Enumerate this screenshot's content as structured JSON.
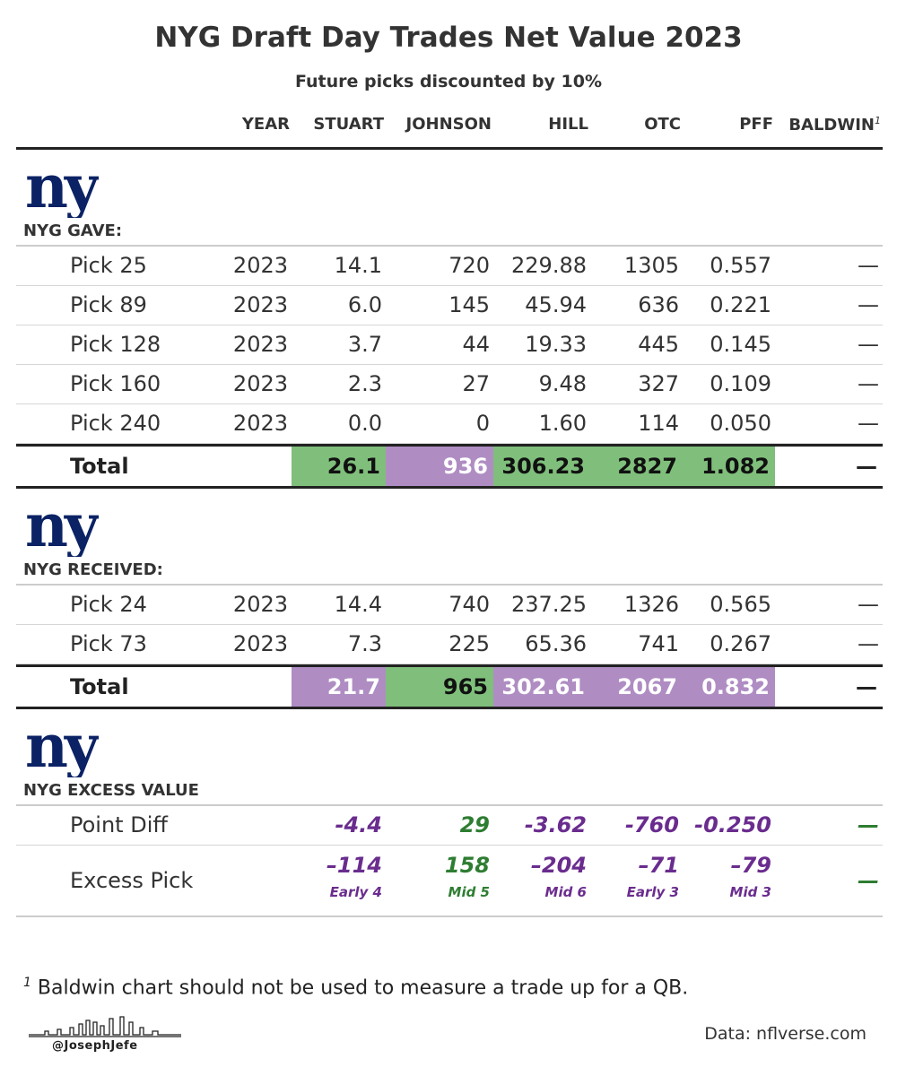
{
  "title": "NYG Draft Day Trades Net Value 2023",
  "subtitle": "Future picks discounted by 10%",
  "columns": [
    "YEAR",
    "STUART",
    "JOHNSON",
    "HILL",
    "OTC",
    "PFF",
    "BALDWIN"
  ],
  "baldwin_footnote_marker": "1",
  "logo_text": "ny",
  "colors": {
    "green": "#7fbf7b",
    "purple": "#af8dc3",
    "dark_purple": "#6a2c8e",
    "dark_green": "#2e7d32",
    "giants_blue": "#0b2265"
  },
  "chart_data": {
    "type": "table",
    "title": "NYG Draft Day Trades Net Value 2023",
    "subtitle": "Future picks discounted by 10%",
    "gave": {
      "label": "NYG GAVE:",
      "rows": [
        {
          "label": "Pick 25",
          "year": "2023",
          "stuart": "14.1",
          "johnson": "720",
          "hill": "229.88",
          "otc": "1305",
          "pff": "0.557",
          "baldwin": "—"
        },
        {
          "label": "Pick 89",
          "year": "2023",
          "stuart": "6.0",
          "johnson": "145",
          "hill": "45.94",
          "otc": "636",
          "pff": "0.221",
          "baldwin": "—"
        },
        {
          "label": "Pick 128",
          "year": "2023",
          "stuart": "3.7",
          "johnson": "44",
          "hill": "19.33",
          "otc": "445",
          "pff": "0.145",
          "baldwin": "—"
        },
        {
          "label": "Pick 160",
          "year": "2023",
          "stuart": "2.3",
          "johnson": "27",
          "hill": "9.48",
          "otc": "327",
          "pff": "0.109",
          "baldwin": "—"
        },
        {
          "label": "Pick 240",
          "year": "2023",
          "stuart": "0.0",
          "johnson": "0",
          "hill": "1.60",
          "otc": "114",
          "pff": "0.050",
          "baldwin": "—"
        }
      ],
      "total": {
        "label": "Total",
        "stuart": "26.1",
        "johnson": "936",
        "hill": "306.23",
        "otc": "2827",
        "pff": "1.082",
        "baldwin": "—"
      },
      "total_colors": {
        "stuart": "green",
        "johnson": "purple",
        "hill": "green",
        "otc": "green",
        "pff": "green"
      }
    },
    "received": {
      "label": "NYG RECEIVED:",
      "rows": [
        {
          "label": "Pick 24",
          "year": "2023",
          "stuart": "14.4",
          "johnson": "740",
          "hill": "237.25",
          "otc": "1326",
          "pff": "0.565",
          "baldwin": "—"
        },
        {
          "label": "Pick 73",
          "year": "2023",
          "stuart": "7.3",
          "johnson": "225",
          "hill": "65.36",
          "otc": "741",
          "pff": "0.267",
          "baldwin": "—"
        }
      ],
      "total": {
        "label": "Total",
        "stuart": "21.7",
        "johnson": "965",
        "hill": "302.61",
        "otc": "2067",
        "pff": "0.832",
        "baldwin": "—"
      },
      "total_colors": {
        "stuart": "purple",
        "johnson": "green",
        "hill": "purple",
        "otc": "purple",
        "pff": "purple"
      }
    },
    "excess": {
      "label": "NYG EXCESS VALUE",
      "point_diff": {
        "label": "Point Diff",
        "stuart": "-4.4",
        "johnson": "29",
        "hill": "-3.62",
        "otc": "-760",
        "pff": "-0.250",
        "baldwin": "—"
      },
      "excess_pick": {
        "label": "Excess Pick",
        "stuart": "–114",
        "johnson": "158",
        "hill": "–204",
        "otc": "–71",
        "pff": "–79",
        "baldwin": "—"
      },
      "excess_pick_sub": {
        "stuart": "Early 4",
        "johnson": "Mid 5",
        "hill": "Mid 6",
        "otc": "Early 3",
        "pff": "Mid 3"
      },
      "value_colors": {
        "stuart": "purple",
        "johnson": "green",
        "hill": "purple",
        "otc": "purple",
        "pff": "purple",
        "baldwin": "green"
      }
    }
  },
  "footnote": {
    "marker": "1",
    "text": "Baldwin chart should not be used to measure a trade up for a QB."
  },
  "credit": "Data: nflverse.com",
  "signature_handle": "@JosephJefe"
}
